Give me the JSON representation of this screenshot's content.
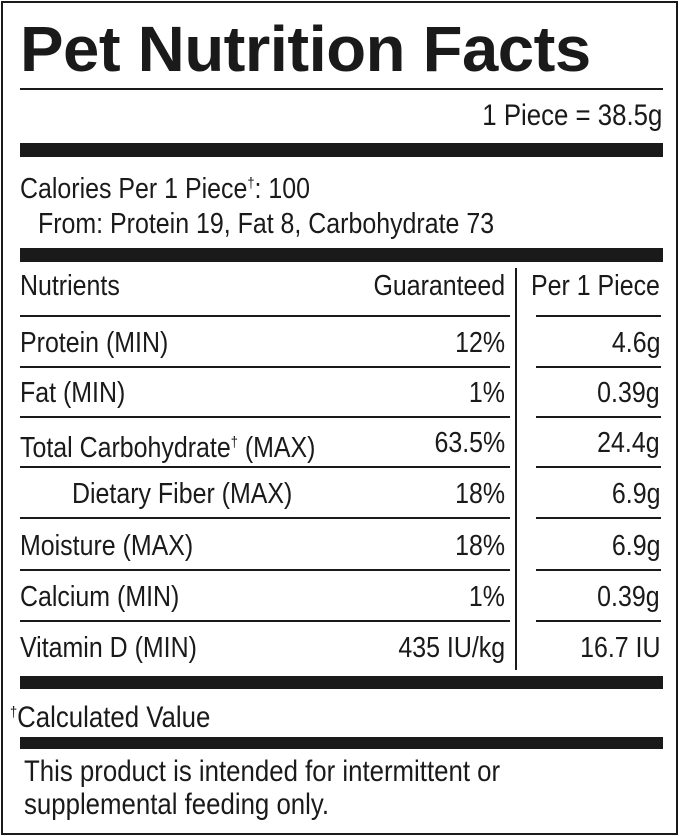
{
  "title": "Pet Nutrition Facts",
  "serving": "1 Piece = 38.5g",
  "calories": {
    "label": "Calories Per 1 Piece",
    "dagger": "†",
    "value": ": 100",
    "from": "From: Protein 19, Fat 8, Carbohydrate 73"
  },
  "table": {
    "headers": [
      "Nutrients",
      "Guaranteed",
      "Per 1 Piece"
    ],
    "rows": [
      {
        "name": "Protein (MIN)",
        "guaranteed": "12%",
        "per_piece": "4.6g"
      },
      {
        "name": "Fat (MIN)",
        "guaranteed": "1%",
        "per_piece": "0.39g"
      },
      {
        "name": "Total Carbohydrate",
        "dagger": "†",
        "qualifier": " (MAX)",
        "guaranteed": "63.5%",
        "per_piece": "24.4g"
      },
      {
        "name": "Dietary Fiber (MAX)",
        "guaranteed": "18%",
        "per_piece": "6.9g"
      },
      {
        "name": "Moisture (MAX)",
        "guaranteed": "18%",
        "per_piece": "6.9g"
      },
      {
        "name": "Calcium (MIN)",
        "guaranteed": "1%",
        "per_piece": "0.39g"
      },
      {
        "name": "Vitamin D (MIN)",
        "guaranteed": "435 IU/kg",
        "per_piece": "16.7 IU"
      }
    ]
  },
  "footnote": {
    "dagger": "†",
    "text": "Calculated Value"
  },
  "disclaimer": [
    "This product is intended for intermittent or",
    "supplemental feeding only."
  ]
}
